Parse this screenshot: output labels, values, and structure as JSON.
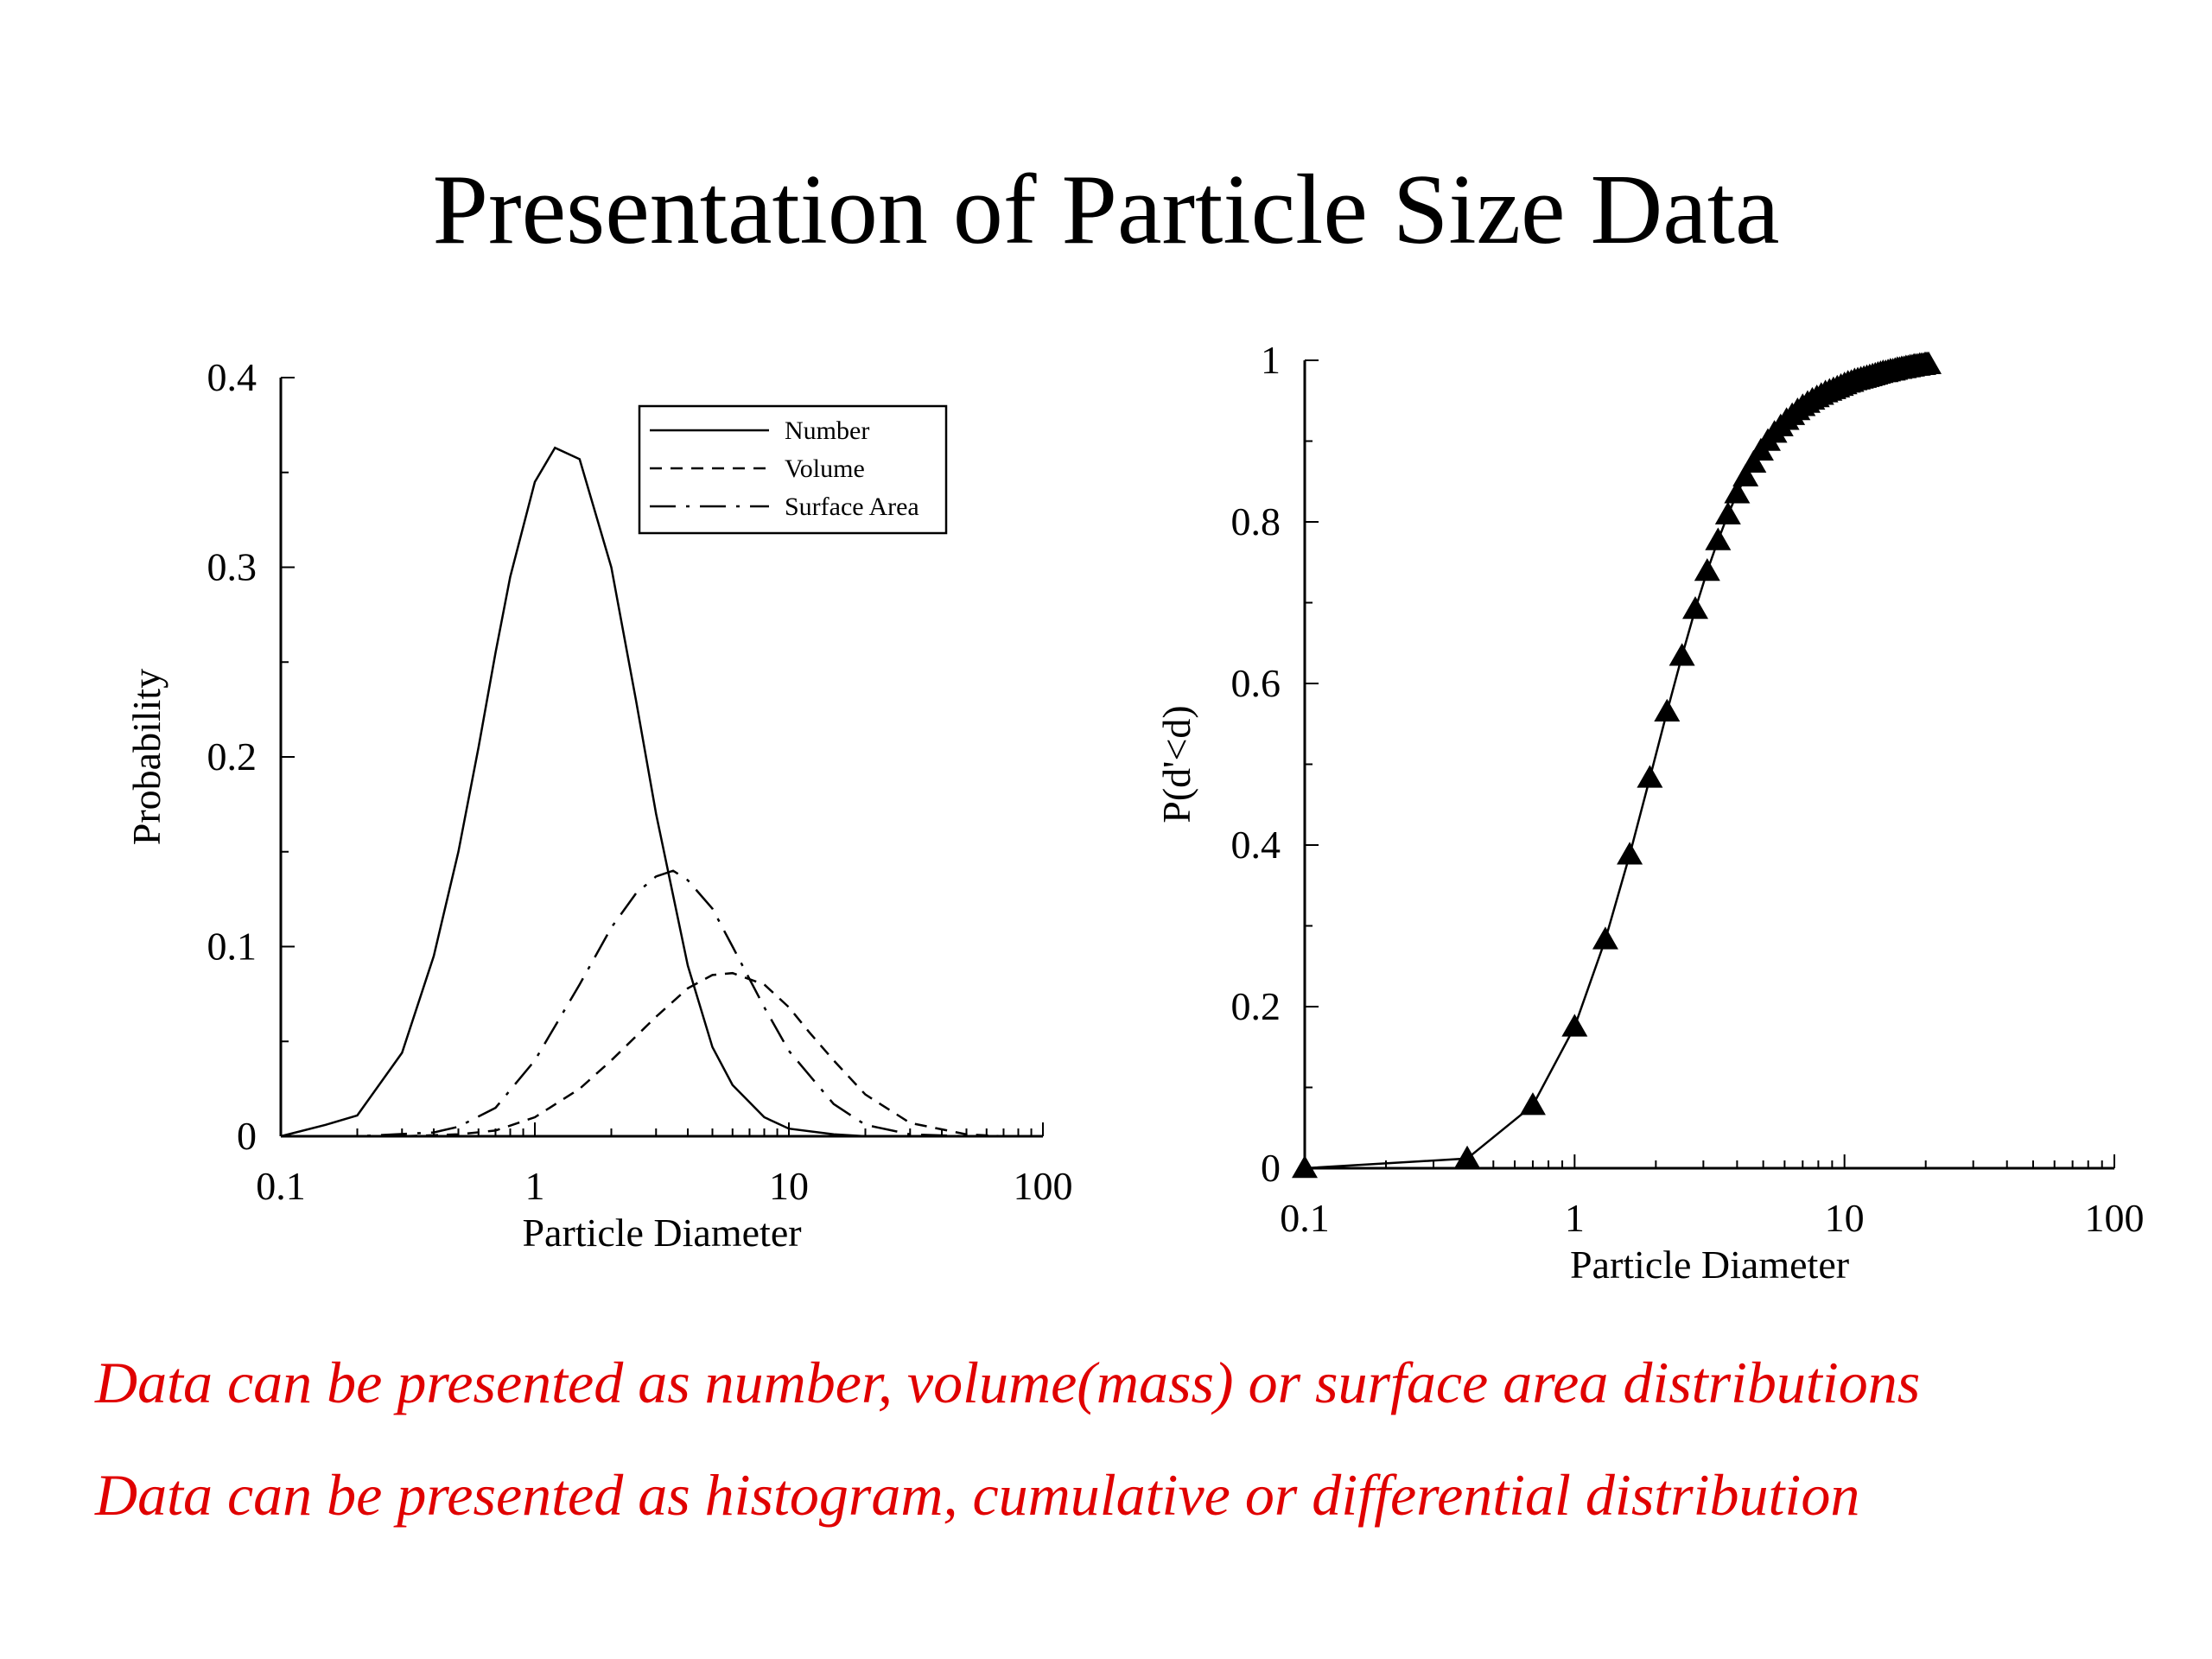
{
  "slide": {
    "title": "Presentation of Particle Size Data",
    "notes": [
      "Data can be presented as number, volume(mass) or surface area distributions",
      "Data can be presented as histogram, cumulative or differential distribution"
    ],
    "note_color": "#e00000"
  },
  "chart_data": [
    {
      "type": "line",
      "xlabel": "Particle Diameter",
      "ylabel": "Probability",
      "xscale": "log",
      "xlim": [
        0.1,
        100
      ],
      "ylim": [
        0,
        0.4
      ],
      "xticks": [
        "0.1",
        "1",
        "10",
        "100"
      ],
      "yticks": [
        "0",
        "0.1",
        "0.2",
        "0.3",
        "0.4"
      ],
      "legend_position": "top-right",
      "series": [
        {
          "name": "Number",
          "style": "solid",
          "x": [
            0.1,
            0.15,
            0.2,
            0.3,
            0.4,
            0.5,
            0.6,
            0.7,
            0.8,
            1.0,
            1.2,
            1.5,
            2.0,
            2.5,
            3.0,
            4.0,
            5.0,
            6.0,
            8.0,
            10,
            15,
            20,
            30,
            50,
            100
          ],
          "values": [
            0.0,
            0.006,
            0.011,
            0.044,
            0.095,
            0.15,
            0.205,
            0.255,
            0.295,
            0.345,
            0.363,
            0.357,
            0.3,
            0.23,
            0.17,
            0.09,
            0.047,
            0.027,
            0.01,
            0.004,
            0.001,
            0.0,
            0.0,
            0.0,
            0.0
          ]
        },
        {
          "name": "Volume",
          "style": "dashed",
          "x": [
            0.1,
            0.3,
            0.5,
            0.7,
            1.0,
            1.5,
            2.0,
            3.0,
            4.0,
            5.0,
            6.0,
            8.0,
            10,
            12,
            15,
            20,
            30,
            50,
            70,
            100
          ],
          "values": [
            0.0,
            0.0,
            0.001,
            0.003,
            0.01,
            0.025,
            0.04,
            0.063,
            0.078,
            0.085,
            0.086,
            0.08,
            0.068,
            0.055,
            0.04,
            0.022,
            0.007,
            0.001,
            0.0,
            0.0
          ]
        },
        {
          "name": "Surface Area",
          "style": "dash-dot",
          "x": [
            0.1,
            0.2,
            0.4,
            0.5,
            0.7,
            1.0,
            1.5,
            2.0,
            2.5,
            3.0,
            3.5,
            4.0,
            5.0,
            6.0,
            8.0,
            10,
            15,
            20,
            30,
            50,
            100
          ],
          "values": [
            0.0,
            0.0,
            0.002,
            0.005,
            0.015,
            0.04,
            0.08,
            0.11,
            0.128,
            0.137,
            0.14,
            0.135,
            0.12,
            0.1,
            0.068,
            0.045,
            0.017,
            0.006,
            0.001,
            0.0,
            0.0
          ]
        }
      ]
    },
    {
      "type": "line",
      "xlabel": "Particle Diameter",
      "ylabel": "P(d'<d)",
      "xscale": "log",
      "xlim": [
        0.1,
        100
      ],
      "ylim": [
        0,
        1
      ],
      "xticks": [
        "0.1",
        "1",
        "10",
        "100"
      ],
      "yticks": [
        "0",
        "0.2",
        "0.4",
        "0.6",
        "0.8",
        "1"
      ],
      "series": [
        {
          "style": "solid-with-triangle-markers",
          "x": [
            0.1,
            0.4,
            0.7,
            1.0,
            1.3,
            1.6,
            1.9,
            2.2,
            2.5,
            2.8,
            3.1,
            3.4,
            3.7,
            4.0,
            4.3,
            4.6,
            4.9,
            5.2,
            5.5,
            5.8,
            6.1,
            6.4,
            6.7,
            7.0,
            7.3,
            7.6,
            7.9,
            8.2,
            8.5,
            8.8,
            9.1,
            9.4,
            9.7,
            10.0,
            10.3,
            10.6,
            10.9,
            11.2,
            11.5,
            11.8,
            12.1,
            12.4,
            12.7,
            13.0,
            13.3,
            13.6,
            13.9,
            14.2,
            14.5,
            14.8,
            15.1,
            15.4,
            15.7,
            16.0,
            16.3,
            16.6,
            16.9,
            17.2,
            17.5,
            17.8,
            18.1,
            18.4,
            18.7,
            19.0,
            19.3,
            19.6,
            19.9,
            20.2,
            20.5
          ],
          "values": [
            0.0,
            0.012,
            0.078,
            0.175,
            0.283,
            0.388,
            0.483,
            0.565,
            0.634,
            0.692,
            0.739,
            0.777,
            0.809,
            0.835,
            0.856,
            0.873,
            0.888,
            0.9,
            0.91,
            0.918,
            0.926,
            0.932,
            0.938,
            0.943,
            0.947,
            0.951,
            0.954,
            0.957,
            0.96,
            0.962,
            0.964,
            0.966,
            0.968,
            0.97,
            0.972,
            0.973,
            0.975,
            0.976,
            0.977,
            0.978,
            0.979,
            0.98,
            0.981,
            0.982,
            0.983,
            0.984,
            0.985,
            0.985,
            0.986,
            0.987,
            0.987,
            0.988,
            0.989,
            0.989,
            0.99,
            0.99,
            0.991,
            0.991,
            0.992,
            0.992,
            0.993,
            0.993,
            0.993,
            0.994,
            0.994,
            0.994,
            0.995,
            0.995,
            0.995
          ]
        }
      ]
    }
  ]
}
